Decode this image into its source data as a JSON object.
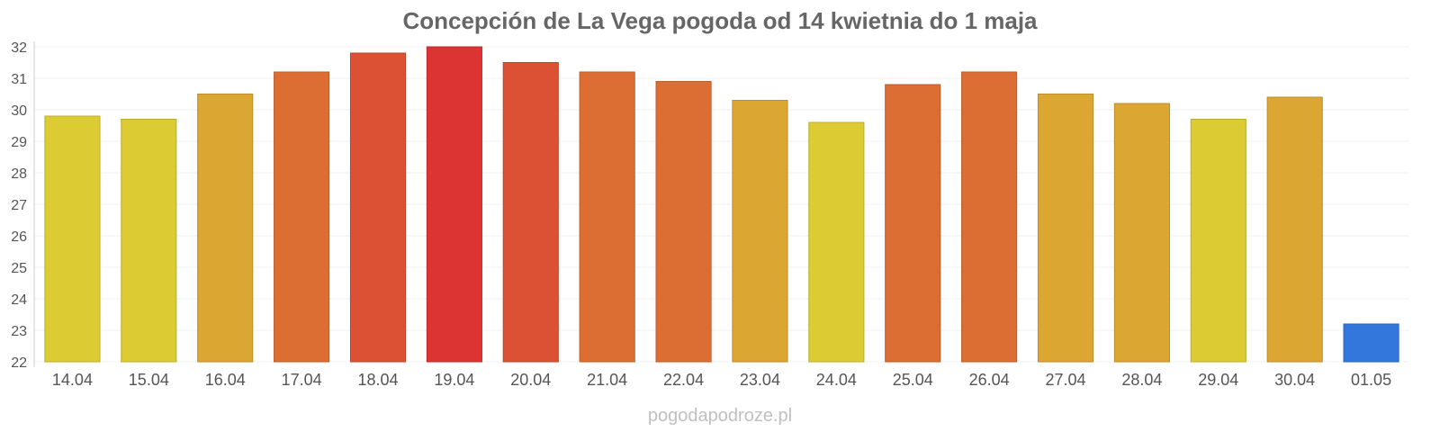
{
  "chart_data": {
    "type": "bar",
    "title": "Concepción de La Vega pogoda od 14 kwietnia do 1 maja",
    "xlabel": "",
    "ylabel": "",
    "ylim": [
      22,
      32
    ],
    "yticks": [
      22,
      23,
      24,
      25,
      26,
      27,
      28,
      29,
      30,
      31,
      32
    ],
    "grid": true,
    "categories": [
      "14.04",
      "15.04",
      "16.04",
      "17.04",
      "18.04",
      "19.04",
      "20.04",
      "21.04",
      "22.04",
      "23.04",
      "24.04",
      "25.04",
      "26.04",
      "27.04",
      "28.04",
      "29.04",
      "30.04",
      "01.05"
    ],
    "values": [
      29.8,
      29.7,
      30.5,
      31.2,
      31.8,
      32.0,
      31.5,
      31.2,
      30.9,
      30.3,
      29.6,
      30.8,
      31.2,
      30.5,
      30.2,
      29.7,
      30.4,
      23.2
    ],
    "colors": [
      "#dccb33",
      "#dccb33",
      "#dca633",
      "#dc6e33",
      "#dc5033",
      "#dc3333",
      "#dc5033",
      "#dc6e33",
      "#dc6e33",
      "#dca633",
      "#dccb33",
      "#dc6e33",
      "#dc6e33",
      "#dca633",
      "#dca633",
      "#dccb33",
      "#dca633",
      "#3377dc"
    ]
  },
  "watermark": "pogodapodroze.pl"
}
